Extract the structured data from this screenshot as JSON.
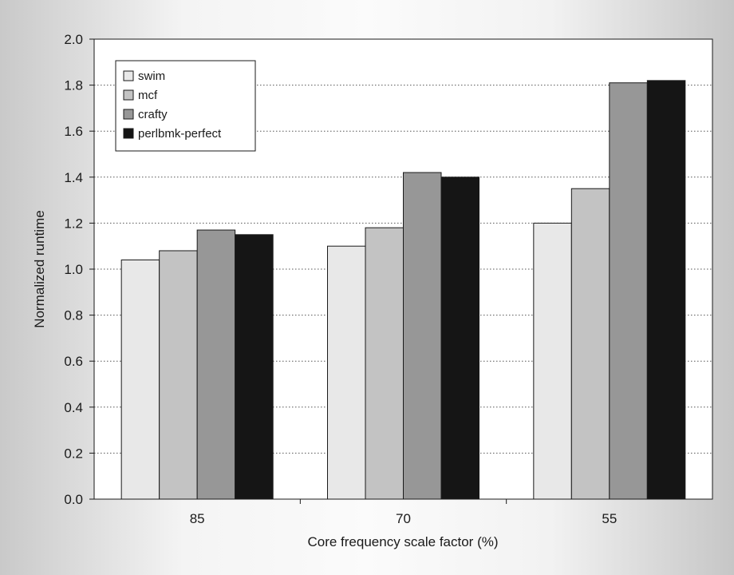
{
  "chart_data": {
    "type": "bar",
    "title": "",
    "xlabel": "Core frequency scale factor (%)",
    "ylabel": "Normalized runtime",
    "categories": [
      "85",
      "70",
      "55"
    ],
    "ylim": [
      0.0,
      2.0
    ],
    "yticks": [
      "0.0",
      "0.2",
      "0.4",
      "0.6",
      "0.8",
      "1.0",
      "1.2",
      "1.4",
      "1.6",
      "1.8",
      "2.0"
    ],
    "ytick_values": [
      0.0,
      0.2,
      0.4,
      0.6,
      0.8,
      1.0,
      1.2,
      1.4,
      1.6,
      1.8,
      2.0
    ],
    "grid": "horizontal dotted",
    "legend_position": "top-left",
    "series": [
      {
        "name": "swim",
        "color": "#e8e8e8",
        "values": [
          1.04,
          1.1,
          1.2
        ]
      },
      {
        "name": "mcf",
        "color": "#c3c3c3",
        "values": [
          1.08,
          1.18,
          1.35
        ]
      },
      {
        "name": "crafty",
        "color": "#979797",
        "values": [
          1.17,
          1.42,
          1.81
        ]
      },
      {
        "name": "perlbmk-perfect",
        "color": "#151515",
        "values": [
          1.15,
          1.4,
          1.82
        ]
      }
    ]
  }
}
